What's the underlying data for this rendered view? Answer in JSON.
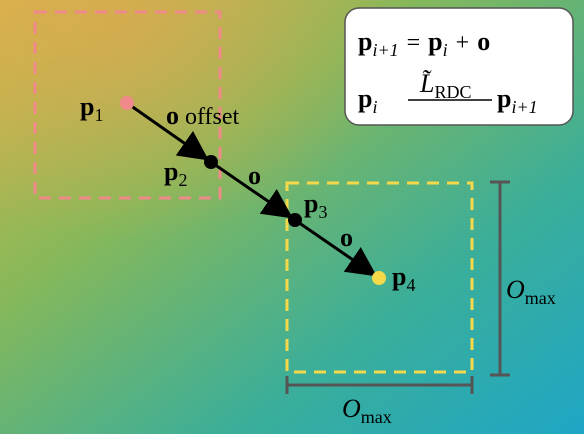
{
  "points": [
    {
      "symbol": "p",
      "sub": "1"
    },
    {
      "symbol": "p",
      "sub": "2"
    },
    {
      "symbol": "p",
      "sub": "3"
    },
    {
      "symbol": "p",
      "sub": "4"
    }
  ],
  "vectors": [
    {
      "symbol": "o",
      "note": "offset"
    },
    {
      "symbol": "o"
    },
    {
      "symbol": "o"
    }
  ],
  "equations": [
    {
      "lhs": "p",
      "lhs_sub": "i+1",
      "eq": "=",
      "rhs": "p",
      "rhs_sub": "i",
      "plus": "+",
      "term": "o"
    },
    {
      "from": "p",
      "from_sub": "i",
      "op": "L̃",
      "op_sub": "RDC",
      "to": "p",
      "to_sub": "i+1"
    }
  ],
  "dimensions": [
    {
      "symbol": "O",
      "sub": "max"
    },
    {
      "symbol": "O",
      "sub": "max"
    }
  ]
}
